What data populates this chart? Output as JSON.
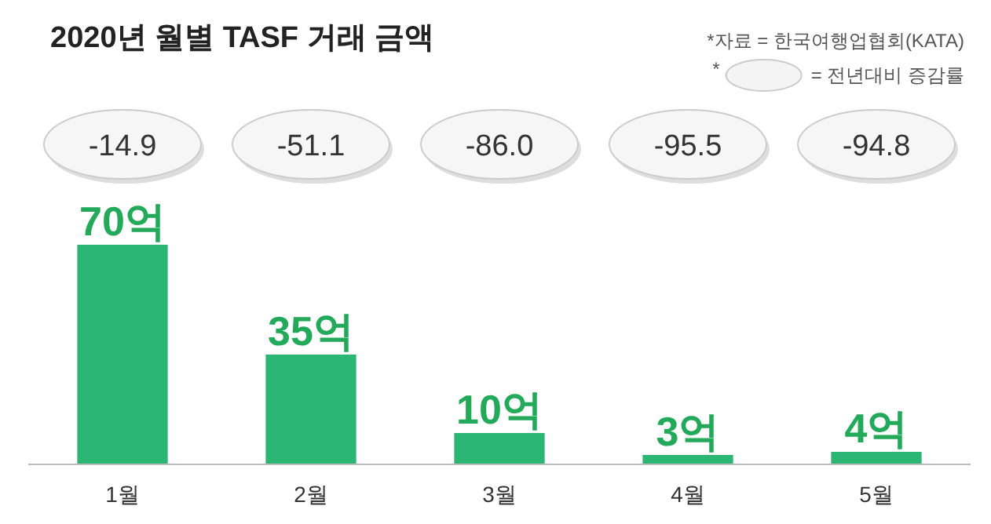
{
  "chart_data": {
    "type": "bar",
    "title": "2020년 월별 TASF 거래 금액",
    "categories": [
      "1월",
      "2월",
      "3월",
      "4월",
      "5월"
    ],
    "values": [
      70,
      35,
      10,
      3,
      4
    ],
    "value_labels": [
      "70억",
      "35억",
      "10억",
      "3억",
      "4억"
    ],
    "color": "#2bb673",
    "annotations": [
      "*자료 = 한국여행업협회(KATA)",
      "*",
      "= 전년대비 증감률",
      "-14.9",
      "-51.1",
      "-86.0",
      "-95.5",
      "-94.8"
    ]
  }
}
